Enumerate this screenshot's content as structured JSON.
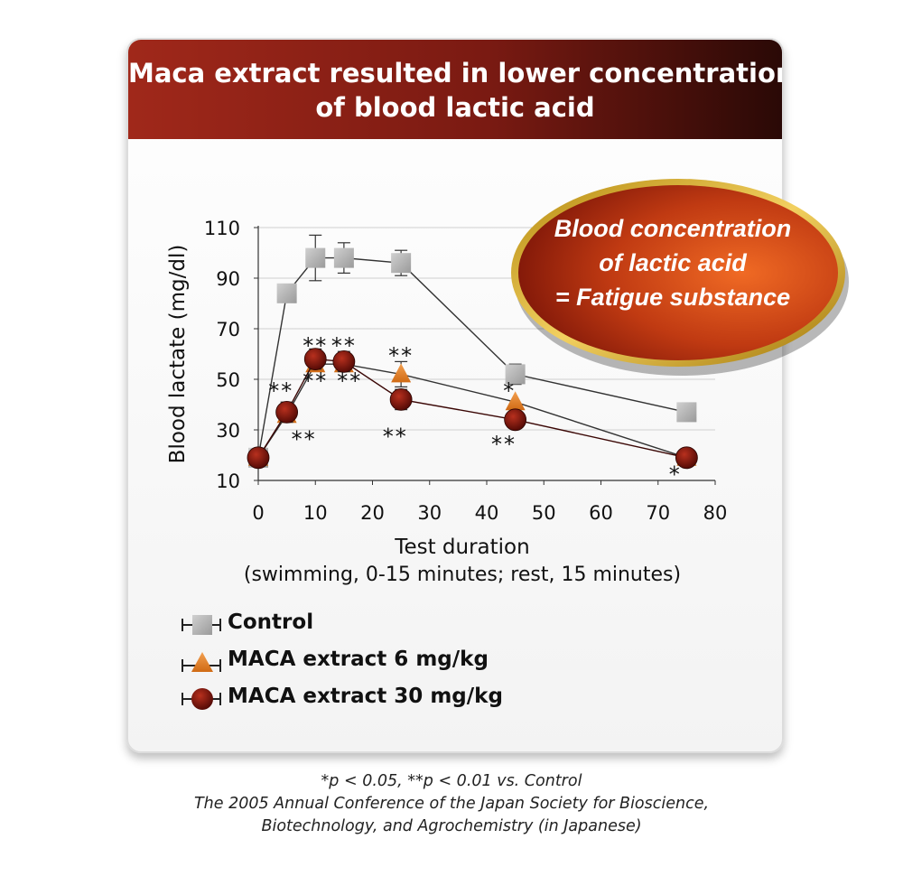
{
  "title": {
    "line1": "Maca extract resulted in lower concentration",
    "line2": "of blood lactic acid"
  },
  "callout": {
    "line1": "Blood concentration",
    "line2": "of lactic acid",
    "line3": "= Fatigue substance"
  },
  "legend": {
    "items": [
      {
        "label": "Control",
        "marker": "square",
        "color": "#b4b4b4"
      },
      {
        "label": "MACA extract 6 mg/kg",
        "marker": "triangle",
        "color": "#e58024"
      },
      {
        "label": "MACA extract 30 mg/kg",
        "marker": "circle",
        "color": "#7a1008"
      }
    ]
  },
  "footnote": {
    "line1": "*p < 0.05, **p < 0.01 vs. Control",
    "line2": "The 2005 Annual Conference of the Japan Society for Bioscience,",
    "line3": "Biotechnology, and Agrochemistry (in Japanese)"
  },
  "chart_data": {
    "type": "line",
    "xlabel": "Test duration",
    "xlabel_sub": "(swimming, 0-15 minutes; rest, 15 minutes)",
    "ylabel": "Blood lactate (mg/dl)",
    "xlim": [
      0,
      80
    ],
    "ylim": [
      10,
      110
    ],
    "xticks": [
      0,
      10,
      20,
      30,
      40,
      50,
      60,
      70,
      80
    ],
    "yticks": [
      10,
      30,
      50,
      70,
      90,
      110
    ],
    "grid": "horizontal",
    "series": [
      {
        "name": "Control",
        "marker": "square",
        "color": "#b4b4b4",
        "x": [
          0,
          5,
          10,
          15,
          25,
          45,
          75
        ],
        "y": [
          19,
          84,
          98,
          98,
          96,
          52,
          37
        ],
        "err": [
          0,
          0,
          9,
          6,
          5,
          4,
          0
        ]
      },
      {
        "name": "MACA extract 6 mg/kg",
        "marker": "triangle",
        "color": "#e58024",
        "x": [
          0,
          5,
          10,
          15,
          25,
          45,
          75
        ],
        "y": [
          19,
          36,
          56,
          56,
          52,
          41,
          19
        ],
        "err": [
          0,
          0,
          0,
          0,
          5,
          0,
          0
        ]
      },
      {
        "name": "MACA extract 30 mg/kg",
        "marker": "circle",
        "color": "#7a1008",
        "x": [
          0,
          5,
          10,
          15,
          25,
          45,
          75
        ],
        "y": [
          19,
          37,
          58,
          57,
          42,
          34,
          19
        ],
        "err": [
          0,
          4,
          4,
          4,
          4,
          0,
          0
        ]
      }
    ],
    "annotations": [
      {
        "text": "**",
        "x": 10,
        "y": 64
      },
      {
        "text": "**",
        "x": 15,
        "y": 64
      },
      {
        "text": "**",
        "x": 25,
        "y": 60
      },
      {
        "text": "**",
        "x": 4,
        "y": 46
      },
      {
        "text": "**",
        "x": 10,
        "y": 50
      },
      {
        "text": "**",
        "x": 16,
        "y": 50
      },
      {
        "text": "*",
        "x": 44,
        "y": 46
      },
      {
        "text": "**",
        "x": 8,
        "y": 27
      },
      {
        "text": "**",
        "x": 24,
        "y": 28
      },
      {
        "text": "**",
        "x": 43,
        "y": 25
      },
      {
        "text": "*",
        "x": 73,
        "y": 13
      }
    ]
  }
}
